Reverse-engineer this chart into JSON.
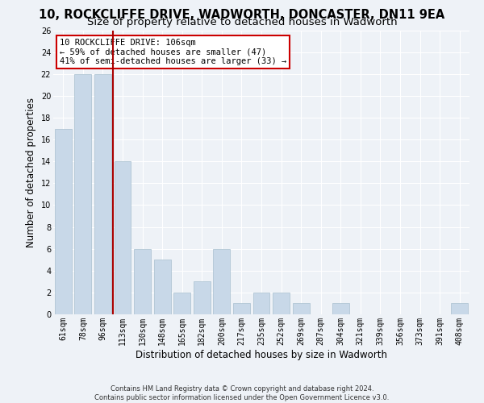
{
  "title": "10, ROCKCLIFFE DRIVE, WADWORTH, DONCASTER, DN11 9EA",
  "subtitle": "Size of property relative to detached houses in Wadworth",
  "xlabel": "Distribution of detached houses by size in Wadworth",
  "ylabel": "Number of detached properties",
  "categories": [
    "61sqm",
    "78sqm",
    "96sqm",
    "113sqm",
    "130sqm",
    "148sqm",
    "165sqm",
    "182sqm",
    "200sqm",
    "217sqm",
    "235sqm",
    "252sqm",
    "269sqm",
    "287sqm",
    "304sqm",
    "321sqm",
    "339sqm",
    "356sqm",
    "373sqm",
    "391sqm",
    "408sqm"
  ],
  "values": [
    17,
    22,
    22,
    14,
    6,
    5,
    2,
    3,
    6,
    1,
    2,
    2,
    1,
    0,
    1,
    0,
    0,
    0,
    0,
    0,
    1
  ],
  "bar_color": "#c8d8e8",
  "bar_edge_color": "#a8bfcf",
  "vline_x_index": 2,
  "vline_color": "#aa0000",
  "annotation_line1": "10 ROCKCLIFFE DRIVE: 106sqm",
  "annotation_line2": "← 59% of detached houses are smaller (47)",
  "annotation_line3": "41% of semi-detached houses are larger (33) →",
  "annotation_box_color": "#ffffff",
  "annotation_box_edge_color": "#cc0000",
  "ylim": [
    0,
    26
  ],
  "yticks": [
    0,
    2,
    4,
    6,
    8,
    10,
    12,
    14,
    16,
    18,
    20,
    22,
    24,
    26
  ],
  "footer": "Contains HM Land Registry data © Crown copyright and database right 2024.\nContains public sector information licensed under the Open Government Licence v3.0.",
  "bg_color": "#eef2f7",
  "grid_color": "#ffffff",
  "title_fontsize": 10.5,
  "subtitle_fontsize": 9.5,
  "tick_fontsize": 7,
  "ylabel_fontsize": 8.5,
  "xlabel_fontsize": 8.5,
  "annotation_fontsize": 7.5,
  "footer_fontsize": 6
}
